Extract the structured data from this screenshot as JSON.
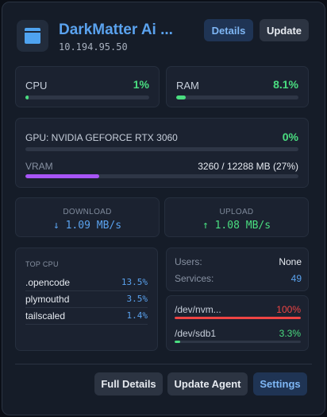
{
  "header": {
    "title": "DarkMatter Ai ...",
    "ip": "10.194.95.50",
    "details_label": "Details",
    "update_label": "Update"
  },
  "cpu": {
    "label": "CPU",
    "value": "1%",
    "fraction": 0.01
  },
  "ram": {
    "label": "RAM",
    "value": "8.1%",
    "fraction": 0.081
  },
  "gpu": {
    "label": "GPU: NVIDIA GEFORCE RTX 3060",
    "value": "0%",
    "fraction": 0.0,
    "vram_label": "VRAM",
    "vram_value": "3260 / 12288 MB (27%)",
    "vram_fraction": 0.27
  },
  "network": {
    "download_label": "DOWNLOAD",
    "download_value": "↓ 1.09 MB/s",
    "upload_label": "UPLOAD",
    "upload_value": "↑ 1.08 MB/s"
  },
  "top_cpu": {
    "title": "TOP CPU",
    "processes": [
      {
        "name": ".opencode",
        "value": "13.5%"
      },
      {
        "name": "plymouthd",
        "value": "3.5%"
      },
      {
        "name": "tailscaled",
        "value": "1.4%"
      }
    ]
  },
  "info": {
    "users_label": "Users:",
    "users_value": "None",
    "services_label": "Services:",
    "services_value": "49"
  },
  "disks": [
    {
      "name": "/dev/nvm...",
      "value": "100%",
      "fraction": 1.0,
      "color": "#ef4444"
    },
    {
      "name": "/dev/sdb1",
      "value": "3.3%",
      "fraction": 0.033,
      "color": "#4ade80"
    }
  ],
  "footer": {
    "full_details_label": "Full Details",
    "update_agent_label": "Update Agent",
    "settings_label": "Settings"
  },
  "colors": {
    "accent": "#5aa2ee",
    "good": "#4ade80",
    "danger": "#ef4444",
    "vram": "#a855f7"
  }
}
